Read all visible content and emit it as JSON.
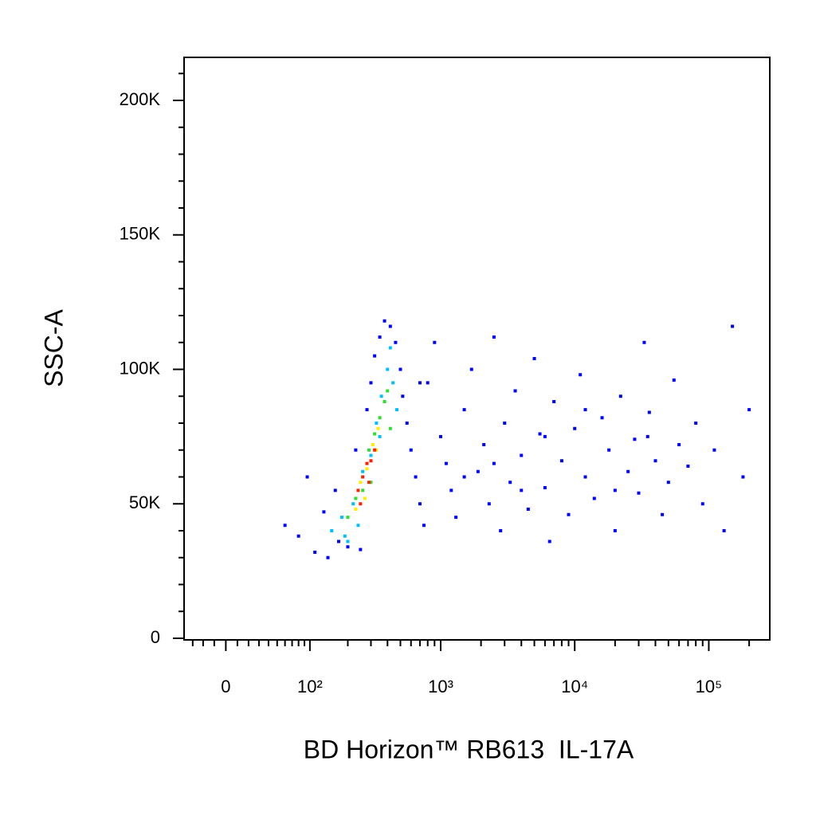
{
  "chart_data": {
    "type": "scatter",
    "xlabel": "BD Horizon™ RB613  IL-17A",
    "ylabel": "SSC-A",
    "xscale": "biexponential",
    "xlim": [
      -39,
      285000
    ],
    "ylim": [
      0,
      216000
    ],
    "xticks": [
      0,
      {
        "value": 100,
        "label": "10²"
      },
      {
        "value": 1000,
        "label": "10³"
      },
      {
        "value": 10000,
        "label": "10⁴"
      },
      {
        "value": 100000,
        "label": "10⁵"
      }
    ],
    "xminorticks": [
      -30,
      -20,
      -10,
      10,
      20,
      30,
      40,
      50,
      60,
      70,
      80,
      90,
      200,
      300,
      400,
      500,
      600,
      700,
      800,
      900,
      2000,
      3000,
      4000,
      5000,
      6000,
      7000,
      8000,
      9000,
      20000,
      30000,
      40000,
      50000,
      60000,
      70000,
      80000,
      90000,
      200000
    ],
    "yticks": [
      0,
      {
        "value": 50000,
        "label": "50K"
      },
      {
        "value": 100000,
        "label": "100K"
      },
      {
        "value": 150000,
        "label": "150K"
      },
      {
        "value": 200000,
        "label": "200K"
      }
    ],
    "yminorticks": [
      10000,
      20000,
      30000,
      40000,
      60000,
      70000,
      80000,
      90000,
      110000,
      120000,
      130000,
      140000,
      160000,
      170000,
      180000,
      190000,
      210000
    ],
    "series": [
      {
        "color": "#0000ff",
        "x": [
          60,
          80,
          95,
          110,
          130,
          140,
          160,
          170,
          200,
          230,
          250,
          280,
          300,
          320,
          350,
          380,
          420,
          460,
          500,
          520,
          560,
          600,
          650,
          700,
          750,
          800,
          900,
          1000,
          1100,
          1200,
          1300,
          1500,
          1700,
          1900,
          2100,
          2300,
          2500,
          2800,
          3000,
          3300,
          3600,
          4000,
          4500,
          5000,
          5500,
          6000,
          6500,
          7000,
          8000,
          9000,
          10000,
          11000,
          12000,
          14000,
          16000,
          18000,
          20000,
          22000,
          25000,
          28000,
          30000,
          33000,
          36000,
          40000,
          45000,
          50000,
          55000,
          60000,
          70000,
          80000,
          90000,
          110000,
          130000,
          150000,
          180000,
          200000,
          700,
          1500,
          2500,
          4000,
          6000,
          12000,
          20000,
          35000
        ],
        "values": [
          42000,
          38000,
          60000,
          32000,
          47000,
          30000,
          55000,
          36000,
          34000,
          70000,
          33000,
          85000,
          95000,
          105000,
          112000,
          118000,
          116000,
          110000,
          100000,
          90000,
          80000,
          70000,
          60000,
          50000,
          42000,
          95000,
          110000,
          75000,
          65000,
          55000,
          45000,
          85000,
          100000,
          62000,
          72000,
          50000,
          112000,
          40000,
          80000,
          58000,
          92000,
          68000,
          48000,
          104000,
          76000,
          56000,
          36000,
          88000,
          66000,
          46000,
          78000,
          98000,
          60000,
          52000,
          82000,
          70000,
          40000,
          90000,
          62000,
          74000,
          54000,
          110000,
          84000,
          66000,
          46000,
          58000,
          96000,
          72000,
          64000,
          80000,
          50000,
          70000,
          40000,
          116000,
          60000,
          85000,
          95000,
          60000,
          65000,
          55000,
          75000,
          85000,
          55000,
          75000
        ]
      },
      {
        "color": "#00bfff",
        "x": [
          150,
          180,
          190,
          220,
          260,
          300,
          330,
          360,
          400,
          420,
          440,
          470,
          200,
          240,
          350
        ],
        "values": [
          40000,
          45000,
          38000,
          50000,
          62000,
          68000,
          80000,
          90000,
          100000,
          108000,
          95000,
          85000,
          36000,
          42000,
          75000
        ]
      },
      {
        "color": "#2fdf2f",
        "x": [
          200,
          230,
          260,
          290,
          320,
          350,
          380,
          400,
          420,
          300
        ],
        "values": [
          45000,
          52000,
          55000,
          70000,
          76000,
          82000,
          88000,
          92000,
          78000,
          58000
        ]
      },
      {
        "color": "#ffee00",
        "x": [
          230,
          250,
          280,
          310,
          340,
          270,
          330
        ],
        "values": [
          48000,
          58000,
          63000,
          72000,
          78000,
          52000,
          70000
        ]
      },
      {
        "color": "#ff2000",
        "x": [
          240,
          260,
          280,
          300,
          290,
          320,
          250
        ],
        "values": [
          55000,
          60000,
          65000,
          66000,
          58000,
          70000,
          50000
        ]
      }
    ]
  }
}
